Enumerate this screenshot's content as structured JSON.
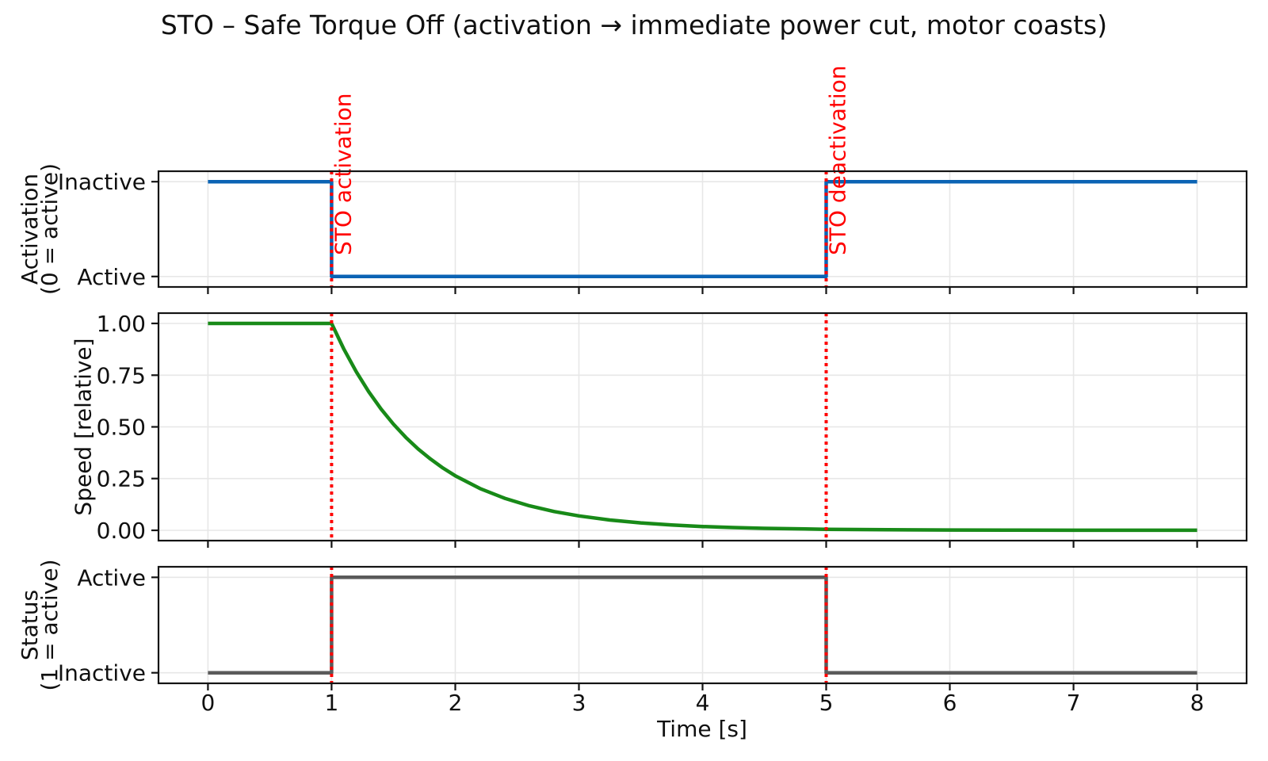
{
  "title": "STO – Safe Torque Off (activation → immediate power cut, motor coasts)",
  "xlabel": "Time [s]",
  "x_axis": {
    "ticks": [
      0,
      1,
      2,
      3,
      4,
      5,
      6,
      7,
      8
    ],
    "unit": "s"
  },
  "events": [
    {
      "time_s": 1,
      "label": "STO activation"
    },
    {
      "time_s": 5,
      "label": "STO deactivation"
    }
  ],
  "colors": {
    "activation_line": "#0b63b4",
    "speed_line": "#188a18",
    "status_line": "#5a5a5a",
    "event_line": "#ff0000",
    "grid": "#e7e7e7",
    "axis": "#141414",
    "text": "#101010"
  },
  "chart_data": [
    {
      "type": "line",
      "name": "activation",
      "ylabel": "Activation\n(0 = active)",
      "xlim": [
        -0.4,
        8.4
      ],
      "ylim": [
        -0.11,
        1.11
      ],
      "xticks": [
        0,
        1,
        2,
        3,
        4,
        5,
        6,
        7,
        8
      ],
      "xtick_labels_visible": false,
      "yticks": [
        {
          "value": 1,
          "label": "Inactive"
        },
        {
          "value": 0,
          "label": "Active"
        }
      ],
      "grid": true,
      "series": [
        {
          "name": "sto-activation-input",
          "color": "#0b63b4",
          "linewidth": 4.5,
          "x": [
            0,
            1,
            1,
            5,
            5,
            8
          ],
          "y": [
            1,
            1,
            0,
            0,
            1,
            1
          ]
        }
      ],
      "event_lines": [
        {
          "x": 1,
          "label": "STO activation",
          "show_label": true
        },
        {
          "x": 5,
          "label": "STO deactivation",
          "show_label": true
        }
      ]
    },
    {
      "type": "line",
      "name": "speed",
      "ylabel": "Speed [relative]",
      "xlim": [
        -0.4,
        8.4
      ],
      "ylim": [
        -0.05,
        1.05
      ],
      "xticks": [
        0,
        1,
        2,
        3,
        4,
        5,
        6,
        7,
        8
      ],
      "xtick_labels_visible": false,
      "yticks": [
        {
          "value": 1.0,
          "label": "1.00"
        },
        {
          "value": 0.75,
          "label": "0.75"
        },
        {
          "value": 0.5,
          "label": "0.50"
        },
        {
          "value": 0.25,
          "label": "0.25"
        },
        {
          "value": 0.0,
          "label": "0.00"
        }
      ],
      "grid": true,
      "series": [
        {
          "name": "motor-speed-coast",
          "color": "#188a18",
          "linewidth": 4.5,
          "x": [
            0,
            1,
            1.1,
            1.2,
            1.3,
            1.4,
            1.5,
            1.6,
            1.7,
            1.8,
            1.9,
            2,
            2.2,
            2.4,
            2.6,
            2.8,
            3,
            3.25,
            3.5,
            3.75,
            4,
            4.25,
            4.5,
            5,
            5.5,
            6,
            6.5,
            7,
            7.5,
            8
          ],
          "y": [
            1,
            1,
            0.8752,
            0.7659,
            0.6703,
            0.5866,
            0.5134,
            0.4493,
            0.3932,
            0.3442,
            0.3012,
            0.2636,
            0.2019,
            0.1546,
            0.1184,
            0.0907,
            0.0695,
            0.0498,
            0.0357,
            0.0256,
            0.0183,
            0.0131,
            0.0094,
            0.0048,
            0.0025,
            0.0013,
            0.0006,
            0.0003,
            0.0002,
            0.0001
          ]
        }
      ],
      "event_lines": [
        {
          "x": 1,
          "show_label": false
        },
        {
          "x": 5,
          "show_label": false
        }
      ]
    },
    {
      "type": "line",
      "name": "status",
      "ylabel": "Status\n(1 = active)",
      "xlim": [
        -0.4,
        8.4
      ],
      "ylim": [
        -0.11,
        1.11
      ],
      "xticks": [
        0,
        1,
        2,
        3,
        4,
        5,
        6,
        7,
        8
      ],
      "xtick_labels_visible": true,
      "yticks": [
        {
          "value": 1,
          "label": "Active"
        },
        {
          "value": 0,
          "label": "Inactive"
        }
      ],
      "grid": true,
      "series": [
        {
          "name": "sto-status-output",
          "color": "#5a5a5a",
          "linewidth": 4.5,
          "x": [
            0,
            1,
            1,
            5,
            5,
            8
          ],
          "y": [
            0,
            0,
            1,
            1,
            0,
            0
          ]
        }
      ],
      "event_lines": [
        {
          "x": 1,
          "show_label": false
        },
        {
          "x": 5,
          "show_label": false
        }
      ]
    }
  ]
}
